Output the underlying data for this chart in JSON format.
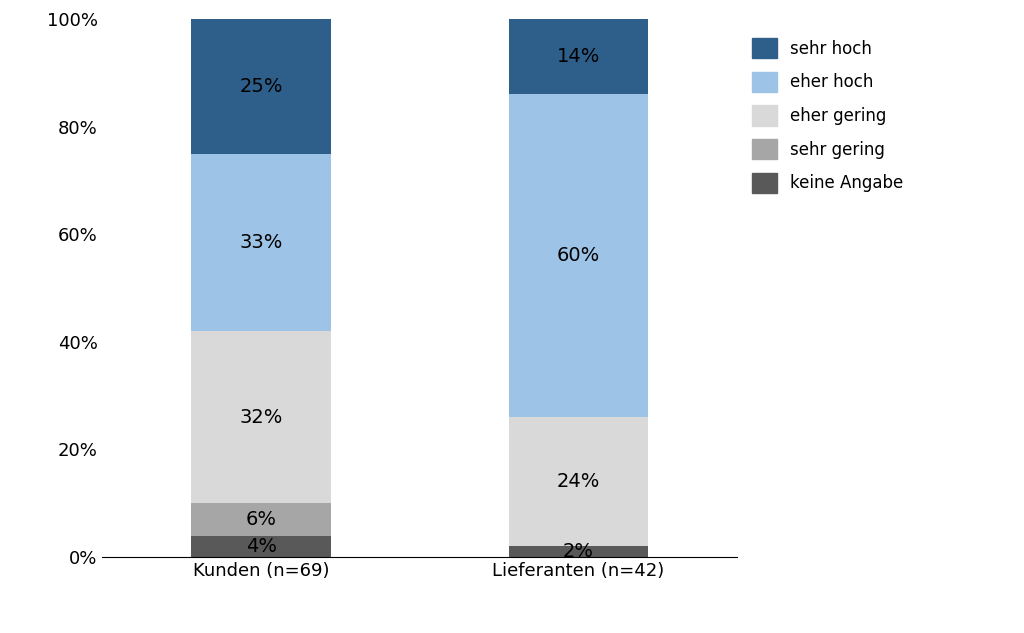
{
  "categories": [
    "Kunden (n=69)",
    "Lieferanten (n=42)"
  ],
  "segments": [
    {
      "label": "keine Angabe",
      "color": "#595959",
      "values": [
        4,
        2
      ]
    },
    {
      "label": "sehr gering",
      "color": "#a6a6a6",
      "values": [
        6,
        0
      ]
    },
    {
      "label": "eher gering",
      "color": "#d9d9d9",
      "values": [
        32,
        24
      ]
    },
    {
      "label": "eher hoch",
      "color": "#9dc3e6",
      "values": [
        33,
        60
      ]
    },
    {
      "label": "sehr hoch",
      "color": "#2e5f8a",
      "values": [
        25,
        14
      ]
    }
  ],
  "ylim": [
    0,
    100
  ],
  "yticks": [
    0,
    20,
    40,
    60,
    80,
    100
  ],
  "yticklabels": [
    "0%",
    "20%",
    "40%",
    "60%",
    "80%",
    "100%"
  ],
  "x_positions": [
    0.25,
    0.75
  ],
  "bar_width": 0.22,
  "background_color": "#ffffff",
  "text_color": "#000000",
  "font_size_labels": 14,
  "font_size_ticks": 13,
  "font_size_legend": 12,
  "xlim": [
    0.0,
    1.0
  ]
}
